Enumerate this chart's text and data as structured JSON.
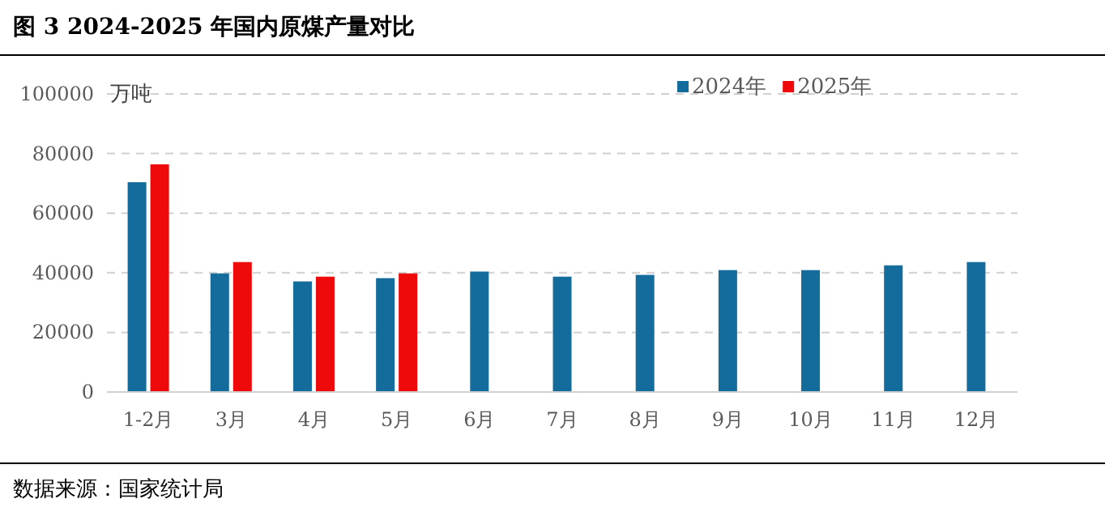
{
  "chart_data": {
    "type": "bar",
    "title": "图 3 2024-2025 年国内原煤产量对比",
    "ylabel": "万吨",
    "categories": [
      "1-2月",
      "3月",
      "4月",
      "5月",
      "6月",
      "7月",
      "8月",
      "9月",
      "10月",
      "11月",
      "12月"
    ],
    "series": [
      {
        "name": "2024年",
        "color": "#136c9c",
        "values": [
          70400,
          39800,
          37100,
          38200,
          40400,
          38700,
          39300,
          40900,
          40900,
          42500,
          43600
        ]
      },
      {
        "name": "2025年",
        "color": "#ee0a0a",
        "values": [
          76400,
          43600,
          38700,
          39800,
          null,
          null,
          null,
          null,
          null,
          null,
          null
        ]
      }
    ],
    "ylim": [
      0,
      100000
    ],
    "yticks": [
      0,
      20000,
      40000,
      60000,
      80000,
      100000
    ],
    "grid": "y",
    "legend": "top",
    "annotations": [
      "数据来源：国家统计局"
    ]
  }
}
